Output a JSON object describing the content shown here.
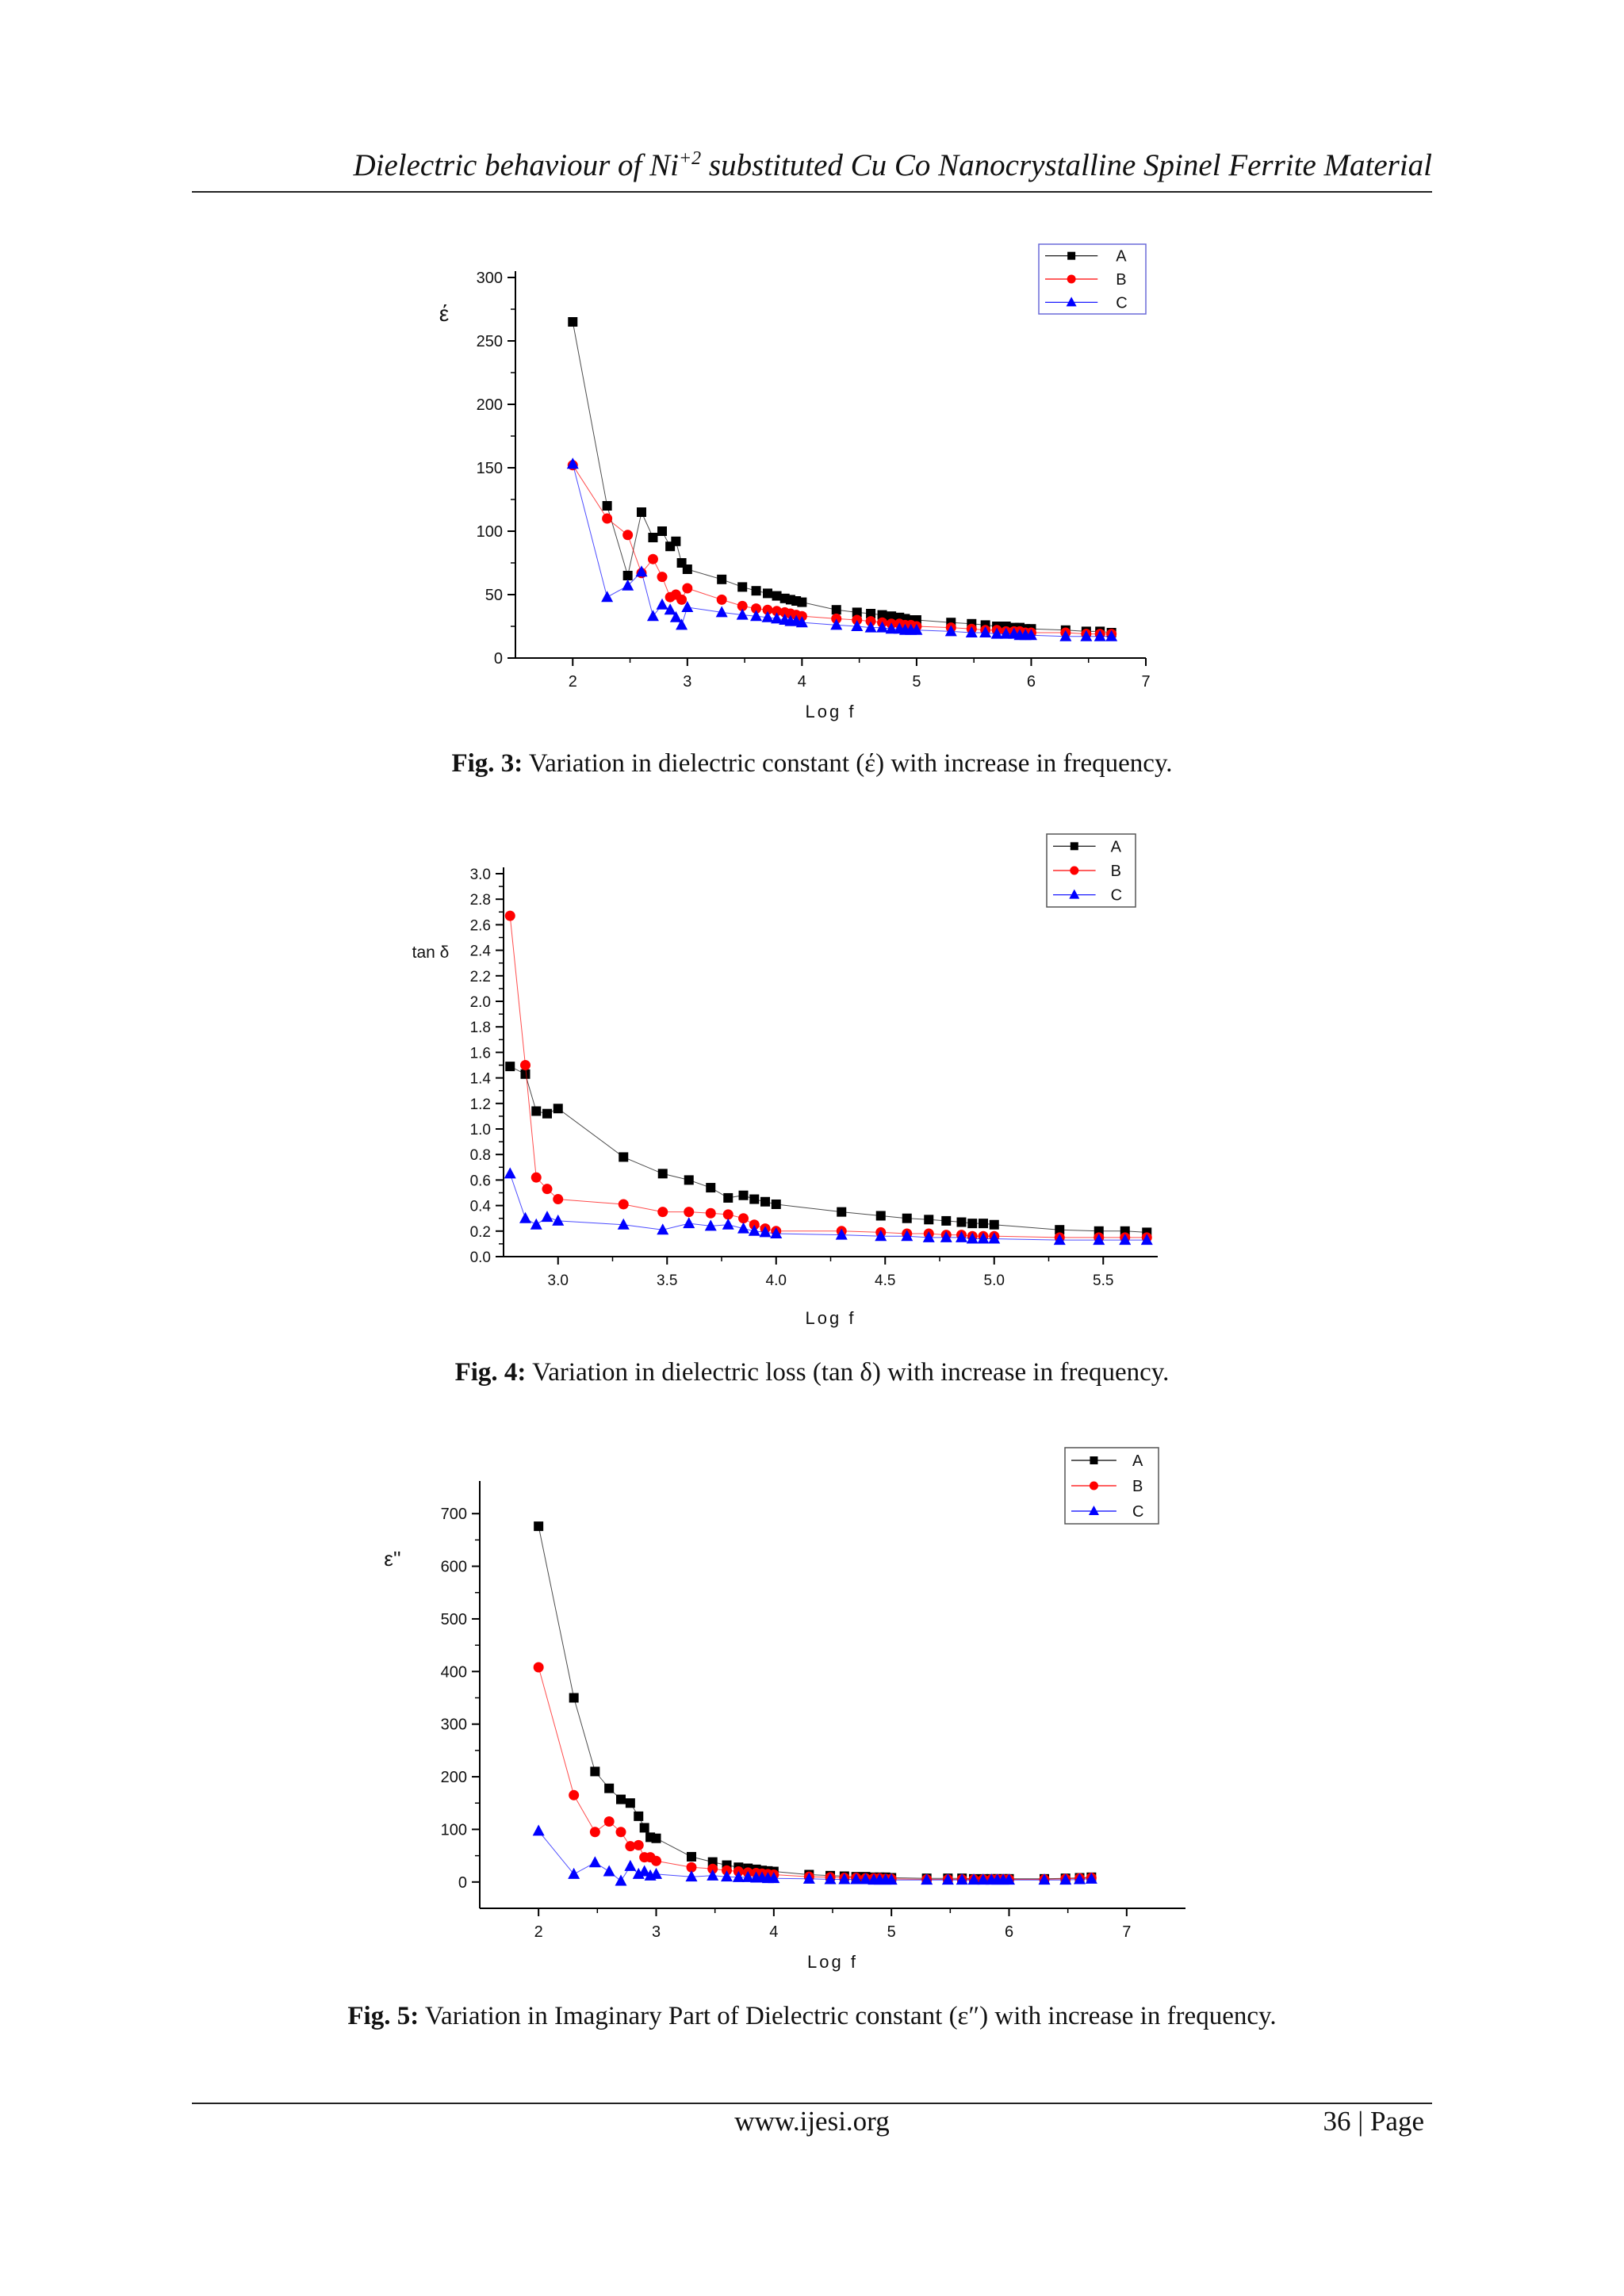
{
  "header": {
    "title_pre": "Dielectric behaviour of Ni",
    "title_sup": "+2",
    "title_post": " substituted Cu Co Nanocrystalline Spinel Ferrite Material"
  },
  "footer": {
    "url": "www.ijesi.org",
    "page": "36 | Page"
  },
  "colors": {
    "A": "#000000",
    "B": "#ff0000",
    "C": "#0000ff"
  },
  "chart_data": [
    {
      "type": "scatter",
      "title": "",
      "xlabel": "Log f",
      "ylabel": "έ",
      "xlim": [
        1.5,
        7
      ],
      "ylim": [
        0,
        300
      ],
      "xticks": [
        2,
        3,
        4,
        5,
        6,
        7
      ],
      "yticks": [
        0,
        50,
        100,
        150,
        200,
        250,
        300
      ],
      "legend": "top-right",
      "caption_label": "Fig. 3:",
      "caption_text": " Variation in dielectric constant (έ) with increase in frequency.",
      "series": [
        {
          "name": "A",
          "marker": "square",
          "x": [
            2.0,
            2.3,
            2.48,
            2.6,
            2.7,
            2.78,
            2.85,
            2.9,
            2.95,
            3.0,
            3.3,
            3.48,
            3.6,
            3.7,
            3.78,
            3.85,
            3.9,
            3.95,
            4.0,
            4.3,
            4.48,
            4.6,
            4.7,
            4.78,
            4.85,
            4.9,
            4.95,
            5.0,
            5.3,
            5.48,
            5.6,
            5.7,
            5.78,
            5.85,
            5.9,
            5.95,
            6.0,
            6.3,
            6.48,
            6.6,
            6.7
          ],
          "y": [
            265,
            120,
            65,
            115,
            95,
            100,
            88,
            92,
            75,
            70,
            62,
            56,
            53,
            51,
            49,
            47,
            46,
            45,
            44,
            38,
            36,
            35,
            34,
            33,
            32,
            31,
            30,
            30,
            28,
            27,
            26,
            25,
            25,
            24,
            24,
            23,
            23,
            22,
            21,
            21,
            20
          ]
        },
        {
          "name": "B",
          "marker": "circle",
          "x": [
            2.0,
            2.3,
            2.48,
            2.6,
            2.7,
            2.78,
            2.85,
            2.9,
            2.95,
            3.0,
            3.3,
            3.48,
            3.6,
            3.7,
            3.78,
            3.85,
            3.9,
            3.95,
            4.0,
            4.3,
            4.48,
            4.6,
            4.7,
            4.78,
            4.85,
            4.9,
            4.95,
            5.0,
            5.3,
            5.48,
            5.6,
            5.7,
            5.78,
            5.85,
            5.9,
            5.95,
            6.0,
            6.3,
            6.48,
            6.6,
            6.7
          ],
          "y": [
            152,
            110,
            97,
            67,
            78,
            64,
            48,
            50,
            46,
            55,
            46,
            41,
            39,
            38,
            37,
            36,
            35,
            34,
            33,
            31,
            30,
            29,
            28,
            27,
            27,
            26,
            26,
            25,
            24,
            23,
            22,
            22,
            21,
            21,
            21,
            20,
            20,
            20,
            19,
            19,
            19
          ]
        },
        {
          "name": "C",
          "marker": "triangle",
          "x": [
            2.0,
            2.3,
            2.48,
            2.6,
            2.7,
            2.78,
            2.85,
            2.9,
            2.95,
            3.0,
            3.3,
            3.48,
            3.6,
            3.7,
            3.78,
            3.85,
            3.9,
            3.95,
            4.0,
            4.3,
            4.48,
            4.6,
            4.7,
            4.78,
            4.85,
            4.9,
            4.95,
            5.0,
            5.3,
            5.48,
            5.6,
            5.7,
            5.78,
            5.85,
            5.9,
            5.95,
            6.0,
            6.3,
            6.48,
            6.6,
            6.7
          ],
          "y": [
            153,
            48,
            57,
            68,
            33,
            42,
            38,
            32,
            26,
            40,
            36,
            34,
            33,
            32,
            31,
            30,
            29,
            29,
            28,
            26,
            25,
            24,
            24,
            23,
            23,
            22,
            22,
            22,
            21,
            20,
            20,
            19,
            19,
            19,
            18,
            18,
            18,
            17,
            17,
            17,
            17
          ]
        }
      ]
    },
    {
      "type": "scatter",
      "title": "",
      "xlabel": "Log f",
      "ylabel": "tan δ",
      "xlim": [
        2.75,
        5.75
      ],
      "ylim": [
        0,
        3.0
      ],
      "xticks": [
        3.0,
        3.5,
        4.0,
        4.5,
        5.0,
        5.5
      ],
      "xtick_labels": [
        "3.0",
        "3.5",
        "4.0",
        "4.5",
        "5.0",
        "5.5"
      ],
      "yticks": [
        0,
        0.2,
        0.4,
        0.6,
        0.8,
        1.0,
        1.2,
        1.4,
        1.6,
        1.8,
        2.0,
        2.2,
        2.4,
        2.6,
        2.8,
        3.0
      ],
      "ytick_labels": [
        "0.0",
        "0.2",
        "0.4",
        "0.6",
        "0.8",
        "1.0",
        "1.2",
        "1.4",
        "1.6",
        "1.8",
        "2.0",
        "2.2",
        "2.4",
        "2.6",
        "2.8",
        "3.0"
      ],
      "legend": "top-right",
      "caption_label": "Fig. 4:",
      "caption_text": " Variation in dielectric loss (tan δ) with increase in frequency.",
      "series": [
        {
          "name": "A",
          "marker": "square",
          "x": [
            2.78,
            2.85,
            2.9,
            2.95,
            3.0,
            3.3,
            3.48,
            3.6,
            3.7,
            3.78,
            3.85,
            3.9,
            3.95,
            4.0,
            4.3,
            4.48,
            4.6,
            4.7,
            4.78,
            4.85,
            4.9,
            4.95,
            5.0,
            5.3,
            5.48,
            5.6,
            5.7
          ],
          "y": [
            1.49,
            1.43,
            1.14,
            1.12,
            1.16,
            0.78,
            0.65,
            0.6,
            0.54,
            0.46,
            0.48,
            0.45,
            0.43,
            0.41,
            0.35,
            0.32,
            0.3,
            0.29,
            0.28,
            0.27,
            0.26,
            0.26,
            0.25,
            0.21,
            0.2,
            0.2,
            0.19
          ]
        },
        {
          "name": "B",
          "marker": "circle",
          "x": [
            2.78,
            2.85,
            2.9,
            2.95,
            3.0,
            3.3,
            3.48,
            3.6,
            3.7,
            3.78,
            3.85,
            3.9,
            3.95,
            4.0,
            4.3,
            4.48,
            4.6,
            4.7,
            4.78,
            4.85,
            4.9,
            4.95,
            5.0,
            5.3,
            5.48,
            5.6,
            5.7
          ],
          "y": [
            2.67,
            1.5,
            0.62,
            0.53,
            0.45,
            0.41,
            0.35,
            0.35,
            0.34,
            0.33,
            0.3,
            0.25,
            0.22,
            0.2,
            0.2,
            0.19,
            0.18,
            0.18,
            0.17,
            0.17,
            0.16,
            0.16,
            0.16,
            0.15,
            0.15,
            0.15,
            0.15
          ]
        },
        {
          "name": "C",
          "marker": "triangle",
          "x": [
            2.78,
            2.85,
            2.9,
            2.95,
            3.0,
            3.3,
            3.48,
            3.6,
            3.7,
            3.78,
            3.85,
            3.9,
            3.95,
            4.0,
            4.3,
            4.48,
            4.6,
            4.7,
            4.78,
            4.85,
            4.9,
            4.95,
            5.0,
            5.3,
            5.48,
            5.6,
            5.7
          ],
          "y": [
            0.65,
            0.3,
            0.25,
            0.31,
            0.28,
            0.25,
            0.21,
            0.26,
            0.24,
            0.25,
            0.22,
            0.2,
            0.19,
            0.18,
            0.17,
            0.16,
            0.16,
            0.15,
            0.15,
            0.15,
            0.14,
            0.14,
            0.14,
            0.13,
            0.13,
            0.13,
            0.13
          ]
        }
      ]
    },
    {
      "type": "scatter",
      "title": "",
      "xlabel": "Log f",
      "ylabel": "ε''",
      "xlim": [
        1.5,
        7.5
      ],
      "ylim": [
        -50,
        750
      ],
      "xticks": [
        2,
        3,
        4,
        5,
        6,
        7
      ],
      "yticks": [
        0,
        100,
        200,
        300,
        400,
        500,
        600,
        700
      ],
      "legend": "top-right",
      "caption_label": "Fig. 5:",
      "caption_text": " Variation in Imaginary Part of Dielectric constant (ε″) with increase in frequency.",
      "series": [
        {
          "name": "A",
          "marker": "square",
          "x": [
            2.0,
            2.3,
            2.48,
            2.6,
            2.7,
            2.78,
            2.85,
            2.9,
            2.95,
            3.0,
            3.3,
            3.48,
            3.6,
            3.7,
            3.78,
            3.85,
            3.9,
            3.95,
            4.0,
            4.3,
            4.48,
            4.6,
            4.7,
            4.78,
            4.85,
            4.9,
            4.95,
            5.0,
            5.3,
            5.48,
            5.6,
            5.7,
            5.78,
            5.85,
            5.9,
            5.95,
            6.0,
            6.3,
            6.48,
            6.6,
            6.7
          ],
          "y": [
            676,
            350,
            210,
            178,
            157,
            150,
            125,
            103,
            85,
            83,
            48,
            38,
            32,
            28,
            26,
            24,
            22,
            21,
            20,
            14,
            12,
            11,
            10,
            10,
            9,
            9,
            9,
            8,
            7,
            7,
            7,
            6,
            6,
            6,
            6,
            6,
            6,
            6,
            7,
            8,
            9
          ]
        },
        {
          "name": "B",
          "marker": "circle",
          "x": [
            2.0,
            2.3,
            2.48,
            2.6,
            2.7,
            2.78,
            2.85,
            2.9,
            2.95,
            3.0,
            3.3,
            3.48,
            3.6,
            3.7,
            3.78,
            3.85,
            3.9,
            3.95,
            4.0,
            4.3,
            4.48,
            4.6,
            4.7,
            4.78,
            4.85,
            4.9,
            4.95,
            5.0,
            5.3,
            5.48,
            5.6,
            5.7,
            5.78,
            5.85,
            5.9,
            5.95,
            6.0,
            6.3,
            6.48,
            6.6,
            6.7
          ],
          "y": [
            408,
            165,
            95,
            115,
            95,
            68,
            70,
            47,
            47,
            40,
            28,
            25,
            22,
            20,
            18,
            17,
            16,
            15,
            14,
            10,
            9,
            8,
            8,
            7,
            7,
            7,
            6,
            6,
            5,
            5,
            5,
            5,
            5,
            5,
            5,
            5,
            5,
            5,
            6,
            7,
            8
          ]
        },
        {
          "name": "C",
          "marker": "triangle",
          "x": [
            2.0,
            2.3,
            2.48,
            2.6,
            2.7,
            2.78,
            2.85,
            2.9,
            2.95,
            3.0,
            3.3,
            3.48,
            3.6,
            3.7,
            3.78,
            3.85,
            3.9,
            3.95,
            4.0,
            4.3,
            4.48,
            4.6,
            4.7,
            4.78,
            4.85,
            4.9,
            4.95,
            5.0,
            5.3,
            5.48,
            5.6,
            5.7,
            5.78,
            5.85,
            5.9,
            5.95,
            6.0,
            6.3,
            6.48,
            6.6,
            6.7
          ],
          "y": [
            97,
            15,
            37,
            20,
            2,
            30,
            15,
            20,
            12,
            15,
            10,
            12,
            10,
            9,
            9,
            8,
            8,
            7,
            7,
            6,
            5,
            5,
            5,
            5,
            4,
            4,
            4,
            4,
            4,
            4,
            4,
            4,
            4,
            4,
            4,
            4,
            4,
            4,
            4,
            5,
            6
          ]
        }
      ]
    }
  ]
}
